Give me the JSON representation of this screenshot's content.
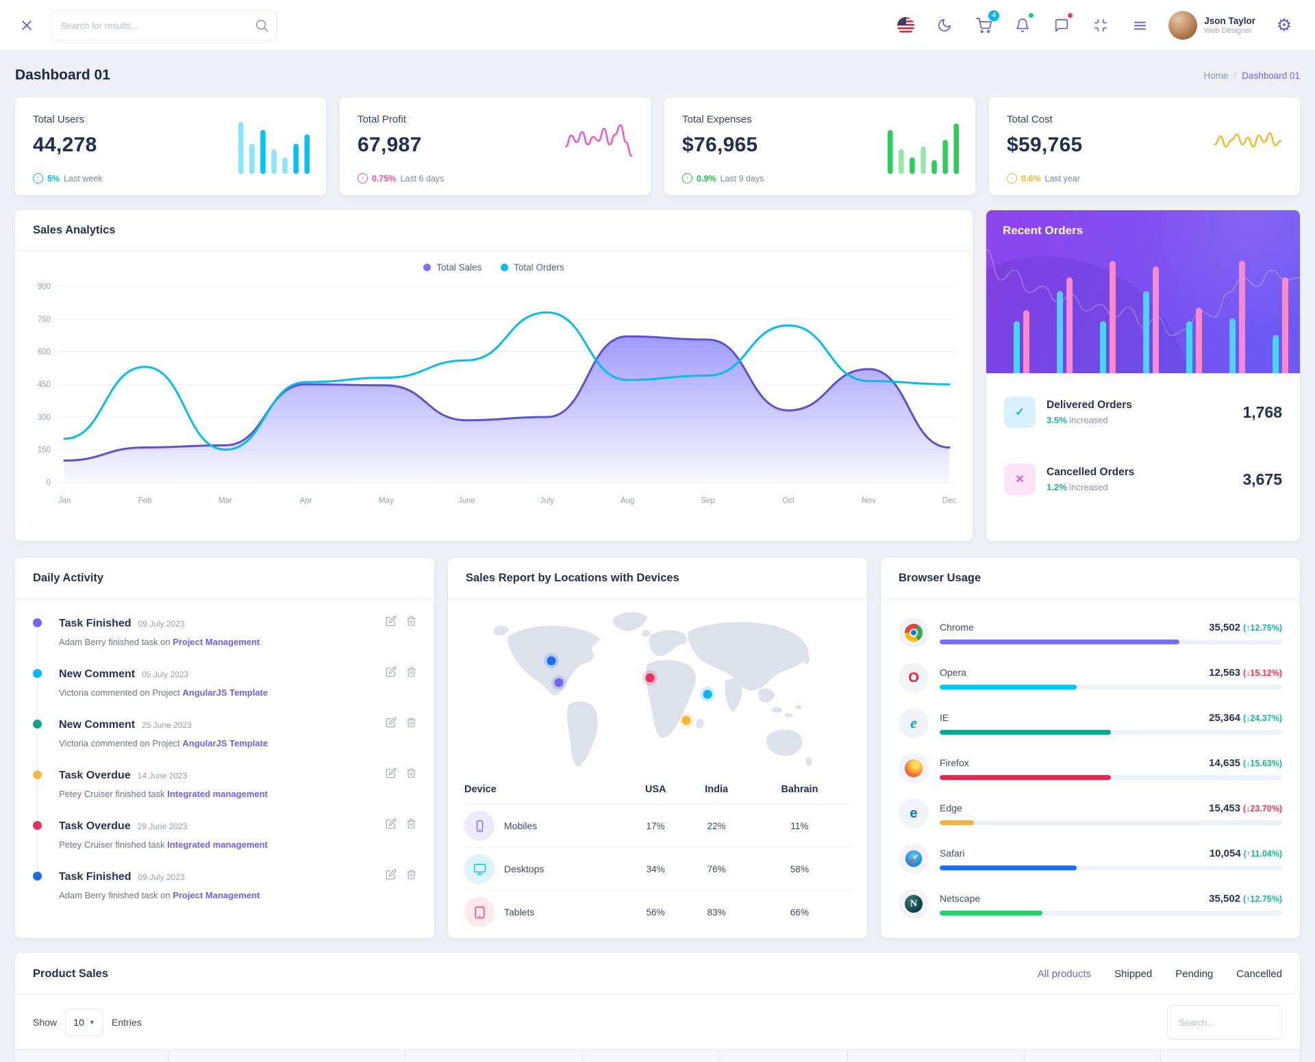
{
  "header": {
    "search_placeholder": "Search for results...",
    "cart_badge": "4",
    "user": {
      "name": "Json Taylor",
      "role": "Web Designer"
    }
  },
  "page": {
    "title": "Dashboard 01",
    "breadcrumb": {
      "home": "Home",
      "separator": "/",
      "current": "Dashboard 01"
    }
  },
  "stats": [
    {
      "label": "Total Users",
      "value": "44,278",
      "delta": "5%",
      "period": "Last week",
      "color": "#01b8ff",
      "spark": {
        "type": "bar",
        "color": "#00c3f7",
        "bars": [
          [
            0.95,
            0.45
          ],
          [
            0.55,
            0.45
          ],
          [
            0.8,
            1
          ],
          [
            0.45,
            0.45
          ],
          [
            0.3,
            0.45
          ],
          [
            0.55,
            1
          ],
          [
            0.72,
            1
          ]
        ]
      }
    },
    {
      "label": "Total Profit",
      "value": "67,987",
      "delta": "0.75%",
      "period": "Last 6 days",
      "color": "#f1538e",
      "spark": {
        "type": "line",
        "color": "#fb4fc8",
        "points": [
          0.55,
          0.3,
          0.45,
          0.22,
          0.5,
          0.33,
          0.42,
          0.15,
          0.5,
          0.28,
          0.07,
          0.45,
          0.75
        ]
      }
    },
    {
      "label": "Total Expenses",
      "value": "$76,965",
      "delta": "0.9%",
      "period": "Last 9 days",
      "color": "#22c03c",
      "spark": {
        "type": "bar",
        "color": "#2dce58",
        "bars": [
          [
            0.8,
            1
          ],
          [
            0.45,
            0.5
          ],
          [
            0.3,
            1
          ],
          [
            0.5,
            0.5
          ],
          [
            0.25,
            1
          ],
          [
            0.62,
            1
          ],
          [
            0.92,
            1
          ]
        ]
      }
    },
    {
      "label": "Total Cost",
      "value": "$59,765",
      "delta": "0.6%",
      "period": "Last year",
      "color": "#f7b731",
      "spark": {
        "type": "line",
        "color": "#fbb624",
        "points": [
          0.5,
          0.32,
          0.55,
          0.4,
          0.28,
          0.5,
          0.35,
          0.55,
          0.3,
          0.45,
          0.25,
          0.52,
          0.42
        ]
      }
    }
  ],
  "sales_analytics": {
    "title": "Sales Analytics",
    "chart_data": {
      "type": "area-line",
      "categories": [
        "Jan",
        "Feb",
        "Mar",
        "Apr",
        "May",
        "June",
        "July",
        "Aug",
        "Sep",
        "Oct",
        "Nov",
        "Dec"
      ],
      "series": [
        {
          "name": "Total Sales",
          "type": "area",
          "color": "#5b50d7",
          "fill": "#7b74fa",
          "values": [
            100,
            160,
            170,
            450,
            445,
            285,
            300,
            670,
            655,
            330,
            520,
            160
          ]
        },
        {
          "name": "Total Orders",
          "type": "line",
          "color": "#00bdf2",
          "values": [
            200,
            530,
            150,
            460,
            480,
            560,
            780,
            470,
            490,
            720,
            465,
            450
          ]
        }
      ],
      "ylim": [
        0,
        900
      ],
      "yticks": [
        0,
        150,
        300,
        450,
        600,
        750,
        900
      ],
      "legend_position": "top",
      "grid": true
    }
  },
  "recent_orders": {
    "title": "Recent Orders",
    "bars": {
      "cyan": [
        0.38,
        0.6,
        0.38,
        0.6,
        0.38,
        0.4,
        0.28
      ],
      "pink": [
        0.46,
        0.7,
        0.82,
        0.78,
        0.48,
        0.82,
        0.7
      ],
      "trend": [
        0.85,
        0.6,
        0.68,
        0.5,
        0.55,
        0.42,
        0.48,
        0.35,
        0.4,
        0.3,
        0.38,
        0.22,
        0.3,
        0.15,
        0.2,
        0.35,
        0.3,
        0.5,
        0.62,
        0.55,
        0.68,
        0.6,
        0.62
      ]
    },
    "items": [
      {
        "label": "Delivered Orders",
        "delta": "3.5%",
        "suffix": "increased",
        "value": "1,768",
        "glyph": "✓",
        "icon_color": "#0cb2e8",
        "icon_bg": "#d8f3fd",
        "delta_color": "#16b996"
      },
      {
        "label": "Cancelled Orders",
        "delta": "1.2%",
        "suffix": "increased",
        "value": "3,675",
        "glyph": "✕",
        "icon_color": "#ee5fb0",
        "icon_bg": "#fce4f6",
        "delta_color": "#16b996"
      }
    ]
  },
  "daily_activity": {
    "title": "Daily Activity",
    "items": [
      {
        "title": "Task Finished",
        "date": "09 July 2023",
        "text": "Adam Berry finished task on ",
        "link": "Project Management",
        "color": "#7366f0"
      },
      {
        "title": "New Comment",
        "date": "05 July 2023",
        "text": "Victoria commented on Project ",
        "link": "AngularJS Template",
        "color": "#01b8ff"
      },
      {
        "title": "New Comment",
        "date": "25 June 2023",
        "text": "Victoria commented on Project ",
        "link": "AngularJS Template",
        "color": "#0ca789"
      },
      {
        "title": "Task Overdue",
        "date": "14 June 2023",
        "text": "Petey Cruiser finished task ",
        "link": "Integrated management",
        "color": "#f5b849"
      },
      {
        "title": "Task Overdue",
        "date": "29 June 2023",
        "text": "Petey Cruiser finished task ",
        "link": "Integrated management",
        "color": "#e8305a"
      },
      {
        "title": "Task Finished",
        "date": "09 July 2023",
        "text": "Adam Berry finished task on ",
        "link": "Project Management",
        "color": "#1a6ef5"
      }
    ]
  },
  "sales_report": {
    "title": "Sales Report by Locations with Devices",
    "headers": [
      "Device",
      "USA",
      "India",
      "Bahrain"
    ],
    "rows": [
      {
        "device": "Mobiles",
        "values": [
          "17%",
          "22%",
          "11%"
        ],
        "icon": "mobile",
        "color": "#7366f0",
        "bg": "#edeafd"
      },
      {
        "device": "Desktops",
        "values": [
          "34%",
          "76%",
          "58%"
        ],
        "icon": "desktop",
        "color": "#01b8ff",
        "bg": "#def4fd"
      },
      {
        "device": "Tablets",
        "values": [
          "56%",
          "83%",
          "66%"
        ],
        "icon": "tablet",
        "color": "#e8305a",
        "bg": "#fde9ee"
      }
    ],
    "markers": [
      {
        "x": 22.5,
        "y": 33,
        "color": "#1a6ef5"
      },
      {
        "x": 24.5,
        "y": 46,
        "color": "#7366f0"
      },
      {
        "x": 48.0,
        "y": 43,
        "color": "#e8305a"
      },
      {
        "x": 63.0,
        "y": 53,
        "color": "#01b8ff"
      },
      {
        "x": 57.5,
        "y": 68,
        "color": "#f7b731"
      }
    ]
  },
  "browser_usage": {
    "title": "Browser Usage",
    "rows": [
      {
        "name": "Chrome",
        "value": "35,502",
        "arrow": "↑",
        "delta": "12.75%",
        "delta_color": "#16b996",
        "bar_color": "#7571f9",
        "pct": 70
      },
      {
        "name": "Opera",
        "value": "12,563",
        "arrow": "↓",
        "delta": "15.12%",
        "delta_color": "#f5334f",
        "bar_color": "#01c6fb",
        "pct": 40
      },
      {
        "name": "IE",
        "value": "25,364",
        "arrow": "↓",
        "delta": "24.37%",
        "delta_color": "#16b996",
        "bar_color": "#02a892",
        "pct": 50
      },
      {
        "name": "Firefox",
        "value": "14,635",
        "arrow": "↓",
        "delta": "15.63%",
        "delta_color": "#16b996",
        "bar_color": "#e02a52",
        "pct": 50
      },
      {
        "name": "Edge",
        "value": "15,453",
        "arrow": "↓",
        "delta": "23.70%",
        "delta_color": "#f5334f",
        "bar_color": "#f5b041",
        "pct": 10
      },
      {
        "name": "Safari",
        "value": "10,054",
        "arrow": "↑",
        "delta": "11.04%",
        "delta_color": "#16b996",
        "bar_color": "#1d6ff2",
        "pct": 40
      },
      {
        "name": "Netscape",
        "value": "35,502",
        "arrow": "↑",
        "delta": "12.75%",
        "delta_color": "#16b996",
        "bar_color": "#24d16b",
        "pct": 30
      }
    ]
  },
  "product_sales": {
    "title": "Product Sales",
    "tabs": [
      {
        "label": "All products",
        "active": true
      },
      {
        "label": "Shipped",
        "active": false
      },
      {
        "label": "Pending",
        "active": false
      },
      {
        "label": "Cancelled",
        "active": false
      }
    ],
    "show_label": "Show",
    "entries_value": "10",
    "entries_label": "Entries",
    "search_placeholder": "Search...",
    "ghost_columns": [
      12,
      18.4,
      13.8,
      10.6,
      10,
      13.8,
      10.6,
      10.8
    ]
  }
}
